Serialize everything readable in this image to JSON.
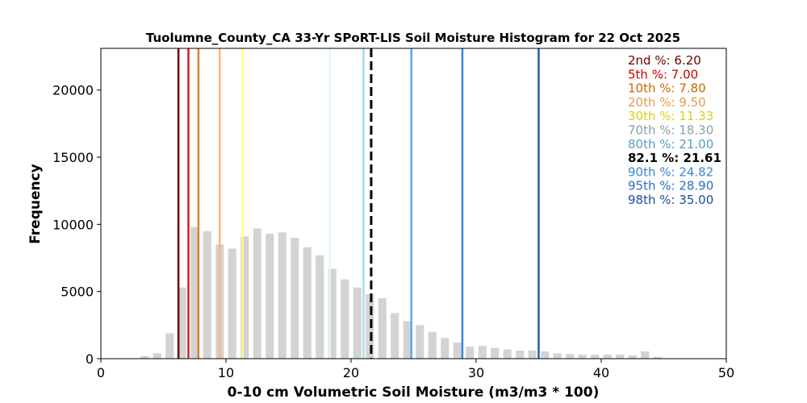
{
  "chart_data": {
    "type": "bar",
    "title": "Tuolumne_County_CA 33-Yr SPoRT-LIS Soil Moisture Histogram for 22 Oct 2025",
    "xlabel": "0-10 cm Volumetric Soil Moisture (m3/m3 * 100)",
    "ylabel": "Frequency",
    "xlim": [
      0,
      50
    ],
    "ylim": [
      0,
      23100
    ],
    "x_ticks": [
      "0",
      "10",
      "20",
      "30",
      "40",
      "50"
    ],
    "y_ticks": [
      "0",
      "5000",
      "10000",
      "15000",
      "20000"
    ],
    "bar_width": 0.65,
    "bar_color": "#d3d3d3",
    "bins": [
      {
        "x": 3.5,
        "value": 200
      },
      {
        "x": 4.5,
        "value": 400
      },
      {
        "x": 5.5,
        "value": 1900
      },
      {
        "x": 6.5,
        "value": 5300
      },
      {
        "x": 7.5,
        "value": 9800
      },
      {
        "x": 8.5,
        "value": 9500
      },
      {
        "x": 9.5,
        "value": 8500
      },
      {
        "x": 10.5,
        "value": 8200
      },
      {
        "x": 11.5,
        "value": 9100
      },
      {
        "x": 12.5,
        "value": 9700
      },
      {
        "x": 13.5,
        "value": 9300
      },
      {
        "x": 14.5,
        "value": 9400
      },
      {
        "x": 15.5,
        "value": 9000
      },
      {
        "x": 16.5,
        "value": 8300
      },
      {
        "x": 17.5,
        "value": 7700
      },
      {
        "x": 18.5,
        "value": 6700
      },
      {
        "x": 19.5,
        "value": 5900
      },
      {
        "x": 20.5,
        "value": 5300
      },
      {
        "x": 21.5,
        "value": 4800
      },
      {
        "x": 22.5,
        "value": 4500
      },
      {
        "x": 23.5,
        "value": 3400
      },
      {
        "x": 24.5,
        "value": 2800
      },
      {
        "x": 25.5,
        "value": 2500
      },
      {
        "x": 26.5,
        "value": 2000
      },
      {
        "x": 27.5,
        "value": 1550
      },
      {
        "x": 28.5,
        "value": 1200
      },
      {
        "x": 29.5,
        "value": 900
      },
      {
        "x": 30.5,
        "value": 950
      },
      {
        "x": 31.5,
        "value": 800
      },
      {
        "x": 32.5,
        "value": 700
      },
      {
        "x": 33.5,
        "value": 600
      },
      {
        "x": 34.5,
        "value": 600
      },
      {
        "x": 35.5,
        "value": 550
      },
      {
        "x": 36.5,
        "value": 400
      },
      {
        "x": 37.5,
        "value": 350
      },
      {
        "x": 38.5,
        "value": 300
      },
      {
        "x": 39.5,
        "value": 300
      },
      {
        "x": 40.5,
        "value": 300
      },
      {
        "x": 41.5,
        "value": 300
      },
      {
        "x": 42.5,
        "value": 250
      },
      {
        "x": 43.5,
        "value": 550
      },
      {
        "x": 44.5,
        "value": 120
      }
    ],
    "percentile_lines": [
      {
        "label": "2nd %: 6.20",
        "value": 6.2,
        "color": "#6b0000",
        "text_color": "#6b0000",
        "style": "solid"
      },
      {
        "label": "5th %: 7.00",
        "value": 7.0,
        "color": "#dd1a1a",
        "text_color": "#cc0000",
        "style": "solid"
      },
      {
        "label": "10th %: 7.80",
        "value": 7.8,
        "color": "#e57e26",
        "text_color": "#cc6600",
        "style": "solid"
      },
      {
        "label": "20th %: 9.50",
        "value": 9.5,
        "color": "#f6b97a",
        "text_color": "#e59a4a",
        "style": "solid"
      },
      {
        "label": "30th %: 11.33",
        "value": 11.33,
        "color": "#ffff80",
        "text_color": "#d8d020",
        "style": "solid"
      },
      {
        "label": "70th %: 18.30",
        "value": 18.3,
        "color": "#e3f7fb",
        "text_color": "#8aa0a8",
        "style": "solid"
      },
      {
        "label": "80th %: 21.00",
        "value": 21.0,
        "color": "#a6dcf2",
        "text_color": "#5a9cc0",
        "style": "solid"
      },
      {
        "label": "82.1 %: 21.61",
        "value": 21.61,
        "color": "#000000",
        "text_color": "#000000",
        "style": "dashed",
        "bold": true
      },
      {
        "label": "90th %: 24.82",
        "value": 24.82,
        "color": "#5aaae6",
        "text_color": "#3a86d0",
        "style": "solid"
      },
      {
        "label": "95th %: 28.90",
        "value": 28.9,
        "color": "#3a86e0",
        "text_color": "#2a6fc0",
        "style": "solid"
      },
      {
        "label": "98th %: 35.00",
        "value": 35.0,
        "color": "#1f60b0",
        "text_color": "#1a4f9a",
        "style": "solid"
      }
    ]
  }
}
